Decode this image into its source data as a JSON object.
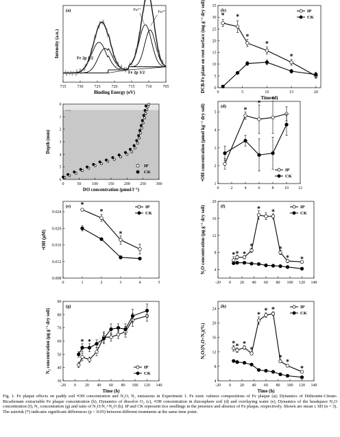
{
  "caption": "Fig. 1. Fe plaque effects on paddy soil •OH concentration and N₂O, N₂ emissions in Experiment 1. Fe ionic valence compositions of Fe plaque (a); Dynamics of Dithionite-Citrate-Bicarbonate extractable Fe plaque concentration (b), Dynamics of dissolve O₂ (c), •OH concentration in rhizosphere soil (d) and overlaying water (e), Dynamics of the headspace N₂O concentration (f), N₂ concentration (g) and ratio of N₂O/N₂+N₂O (h). IP and CK represent rice seedlings in the presence and absence of Fe plaque, respectively. Shown are mean ± SD (n = 3). The asterisk (*) indicates significant differences (p < 0.05) between different treatments at the same time point.",
  "colors": {
    "ip_fill": "#ffffff",
    "ck_fill": "#000000",
    "panel_c_bg": "#c8c8c8",
    "xps_raw": "#a8a8a8"
  },
  "chart_data": [
    {
      "panel": "(a)",
      "type": "line",
      "xlabel": "Binding Energy (eV)",
      "ylabel": "Intensity (a.u.)",
      "xlim": [
        735,
        705
      ],
      "xticks": [
        735,
        730,
        725,
        720,
        715,
        710,
        705
      ],
      "annotations": [
        "Fe²⁺",
        "Fe³⁺",
        "Fe 2p 1/2",
        "Fe 2p 3/2"
      ],
      "peaks": [
        {
          "center": 724.5,
          "height": 0.4,
          "width": 2.2
        },
        {
          "center": 722.8,
          "height": 0.32,
          "width": 2.0
        },
        {
          "center": 711.0,
          "height": 0.55,
          "width": 1.8
        },
        {
          "center": 709.6,
          "height": 0.48,
          "width": 1.6
        }
      ]
    },
    {
      "panel": "(b)",
      "type": "line",
      "xlabel": "Time (d)",
      "ylabel": "DCB-Fe plane on root surface (mg g⁻¹ dry soil)",
      "xlim": [
        0,
        21
      ],
      "ylim": [
        0,
        35
      ],
      "xticks": [
        0,
        5,
        10,
        15,
        20
      ],
      "yticks": [
        0,
        5,
        10,
        15,
        20,
        25,
        30,
        35
      ],
      "legend": [
        "IP",
        "CK"
      ],
      "series": [
        {
          "name": "IP",
          "x": [
            1,
            4,
            6,
            10,
            15,
            20
          ],
          "y": [
            27.5,
            26.0,
            19.0,
            15.8,
            10.8,
            5.0
          ],
          "err": [
            1.5,
            2.5,
            1.5,
            1.5,
            1.2,
            1.0
          ]
        },
        {
          "name": "CK",
          "x": [
            1,
            4,
            6,
            10,
            15,
            20
          ],
          "y": [
            0.5,
            6.3,
            10.3,
            10.8,
            7.0,
            5.6
          ],
          "err": [
            0.3,
            0.5,
            0.8,
            1.0,
            0.8,
            1.0
          ]
        }
      ],
      "stars": [
        {
          "x": 1,
          "y": 31
        },
        {
          "x": 4,
          "y": 30.5
        },
        {
          "x": 6,
          "y": 22
        },
        {
          "x": 10,
          "y": 19
        },
        {
          "x": 15,
          "y": 13.5
        }
      ]
    },
    {
      "panel": "(c)",
      "type": "scatter",
      "xlabel": "DO concentration (μmol l⁻¹)",
      "ylabel": "Depth (mm)",
      "xlim": [
        0,
        300
      ],
      "ylim": [
        0,
        6
      ],
      "xticks": [
        0,
        50,
        100,
        150,
        200,
        250,
        300
      ],
      "yticks": [
        0,
        1,
        2,
        3,
        4,
        5,
        6
      ],
      "tick_labels_y": [
        "0",
        "1",
        "2",
        "3",
        "4",
        "5",
        "6"
      ],
      "legend": [
        "IP",
        "CK"
      ],
      "series": [
        {
          "name": "IP",
          "x": [
            5,
            20,
            40,
            60,
            80,
            100,
            120,
            140,
            160,
            180,
            200,
            215,
            225,
            233,
            238,
            242,
            246,
            250,
            255,
            258,
            262,
            265,
            268
          ],
          "y": [
            5.85,
            5.7,
            5.5,
            5.3,
            5.1,
            4.9,
            4.75,
            4.55,
            4.4,
            4.2,
            4.0,
            3.8,
            3.5,
            3.1,
            2.7,
            2.3,
            1.9,
            1.5,
            1.1,
            0.75,
            0.45,
            0.2,
            0.02
          ]
        },
        {
          "name": "CK",
          "x": [
            0,
            15,
            35,
            55,
            75,
            95,
            115,
            135,
            155,
            175,
            195,
            210,
            222,
            230,
            236,
            240,
            244,
            248,
            252,
            256,
            259
          ],
          "y": [
            5.8,
            5.6,
            5.4,
            5.2,
            5.0,
            4.8,
            4.6,
            4.45,
            4.25,
            4.05,
            3.85,
            3.6,
            3.3,
            2.9,
            2.5,
            2.1,
            1.7,
            1.3,
            0.9,
            0.5,
            0.15
          ]
        }
      ]
    },
    {
      "panel": "(d)",
      "type": "line",
      "xlabel": "",
      "ylabel": "•OH concentration (μmol kg⁻¹ dry soil)",
      "xlim": [
        0,
        12
      ],
      "ylim": [
        1,
        5.6
      ],
      "xticks": [
        0,
        2,
        4,
        6,
        8,
        10,
        12
      ],
      "yticks": [
        1,
        2,
        3,
        4,
        5
      ],
      "legend": [
        "IP",
        "CK"
      ],
      "series": [
        {
          "name": "IP",
          "x": [
            1,
            4,
            6,
            8,
            10
          ],
          "y": [
            2.1,
            4.8,
            4.6,
            4.7,
            4.9
          ],
          "err": [
            0.3,
            0.2,
            0.8,
            0.9,
            0.4
          ]
        },
        {
          "name": "CK",
          "x": [
            1,
            4,
            6,
            8,
            10
          ],
          "y": [
            2.7,
            3.4,
            2.6,
            2.7,
            4.3
          ],
          "err": [
            0.4,
            0.3,
            0.9,
            0.9,
            0.6
          ]
        }
      ],
      "stars": [
        {
          "x": 4,
          "y": 5.15
        },
        {
          "x": 6,
          "y": 5.55
        },
        {
          "x": 8,
          "y": 5.75
        }
      ]
    },
    {
      "panel": "(e)",
      "type": "line",
      "xlabel": "",
      "ylabel": "•OH (μM)",
      "xlim": [
        0,
        5
      ],
      "ylim": [
        0.008,
        0.0265
      ],
      "xticks": [
        0,
        1,
        2,
        3,
        4,
        5
      ],
      "yticks": [
        0.008,
        0.012,
        0.016,
        0.02,
        0.024
      ],
      "tick_labels_y": [
        "0.008",
        "0.012",
        "0.016",
        "0.020",
        "0.024"
      ],
      "legend": [
        "IP",
        "CK"
      ],
      "series": [
        {
          "name": "IP",
          "x": [
            1,
            2,
            3,
            4
          ],
          "y": [
            0.0245,
            0.0225,
            0.0172,
            0.015
          ],
          "err": [
            0.0003,
            0.0008,
            0.001,
            0.0012
          ]
        },
        {
          "name": "CK",
          "x": [
            1,
            2,
            3,
            4
          ],
          "y": [
            0.02,
            0.0174,
            0.013,
            0.0127
          ],
          "err": [
            0.0006,
            0.0003,
            0.0004,
            0.0003
          ]
        }
      ],
      "stars": [
        {
          "x": 1,
          "y": 0.0258
        },
        {
          "x": 2,
          "y": 0.0242
        },
        {
          "x": 3,
          "y": 0.0188
        }
      ]
    },
    {
      "panel": "(f)",
      "type": "line",
      "xlabel": "",
      "ylabel": "N₂O concentration (μg g⁻¹ dry soil)",
      "xlim": [
        -20,
        140
      ],
      "ylim": [
        2,
        20
      ],
      "xticks": [
        -20,
        0,
        20,
        40,
        60,
        80,
        100,
        120,
        140
      ],
      "yticks": [
        4,
        8,
        12,
        16,
        20
      ],
      "legend": [
        "IP",
        "CK"
      ],
      "series": [
        {
          "name": "IP",
          "x": [
            6,
            12,
            24,
            36,
            48,
            60,
            72,
            84,
            96,
            120
          ],
          "y": [
            6.2,
            6.9,
            6.9,
            8.5,
            16.8,
            16.5,
            16.5,
            8.0,
            6.0,
            5.8
          ],
          "err": [
            0.8,
            0.5,
            0.4,
            0.5,
            1.0,
            0.8,
            0.6,
            0.5,
            0.4,
            0.3
          ]
        },
        {
          "name": "CK",
          "x": [
            6,
            12,
            24,
            36,
            48,
            60,
            72,
            84,
            96,
            120
          ],
          "y": [
            5.5,
            5.6,
            5.6,
            5.4,
            5.3,
            5.0,
            4.9,
            4.8,
            4.6,
            4.2
          ],
          "err": [
            0.3,
            0.3,
            0.2,
            0.2,
            0.2,
            0.2,
            0.2,
            0.2,
            0.2,
            0.2
          ]
        }
      ],
      "stars": [
        {
          "x": 6,
          "y": 7.6
        },
        {
          "x": 12,
          "y": 7.9
        },
        {
          "x": 24,
          "y": 7.8
        },
        {
          "x": 36,
          "y": 9.6
        },
        {
          "x": 48,
          "y": 18.4
        },
        {
          "x": 72,
          "y": 17.7
        },
        {
          "x": 84,
          "y": 9.0
        },
        {
          "x": 96,
          "y": 6.9
        },
        {
          "x": 120,
          "y": 6.6
        }
      ]
    },
    {
      "panel": "(g)",
      "type": "line",
      "xlabel": "Time (h)",
      "ylabel": "N₂ concentration (μg g⁻¹ dry soil)",
      "xlim": [
        -20,
        140
      ],
      "ylim": [
        30,
        90
      ],
      "xticks": [
        -20,
        0,
        20,
        40,
        60,
        80,
        100,
        120,
        140
      ],
      "yticks": [
        30,
        40,
        50,
        60,
        70,
        80,
        90
      ],
      "legend": [
        "IP",
        "CK"
      ],
      "series": [
        {
          "name": "IP",
          "x": [
            6,
            12,
            24,
            36,
            48,
            60,
            72,
            84,
            96,
            120
          ],
          "y": [
            42,
            48,
            46,
            52,
            63,
            63,
            65,
            67,
            76,
            79
          ],
          "err": [
            2,
            3,
            2,
            3,
            4,
            3,
            3,
            4,
            5,
            4
          ]
        },
        {
          "name": "CK",
          "x": [
            6,
            12,
            24,
            36,
            48,
            60,
            72,
            84,
            96,
            120
          ],
          "y": [
            50,
            55,
            55,
            58,
            62,
            69,
            70,
            69,
            79,
            83
          ],
          "err": [
            2,
            3,
            3,
            3,
            4,
            4,
            3,
            4,
            5,
            5
          ]
        }
      ],
      "stars": [
        {
          "x": 12,
          "y": 60
        },
        {
          "x": 24,
          "y": 60
        }
      ]
    },
    {
      "panel": "(h)",
      "type": "line",
      "xlabel": "Time (h)",
      "ylabel": "N₂O/(N₂O+N₂)(%)",
      "xlim": [
        -20,
        140
      ],
      "ylim": [
        4,
        26
      ],
      "xticks": [
        -20,
        0,
        20,
        40,
        60,
        80,
        100,
        120,
        140
      ],
      "yticks": [
        4,
        8,
        12,
        16,
        20,
        24
      ],
      "legend": [
        "IP",
        "CK"
      ],
      "series": [
        {
          "name": "IP",
          "x": [
            6,
            12,
            24,
            36,
            48,
            60,
            72,
            84,
            96,
            120
          ],
          "y": [
            13.0,
            12.5,
            13.2,
            11.6,
            20.7,
            22.2,
            22.6,
            9.4,
            8.2,
            6.5
          ],
          "err": [
            0.8,
            0.6,
            0.5,
            0.4,
            1.0,
            0.6,
            0.5,
            0.4,
            0.4,
            0.3
          ]
        },
        {
          "name": "CK",
          "x": [
            6,
            12,
            24,
            36,
            48,
            60,
            72,
            84,
            96,
            120
          ],
          "y": [
            9.5,
            9.2,
            9.0,
            8.5,
            7.0,
            6.8,
            6.5,
            5.8,
            5.4,
            5.0
          ],
          "err": [
            0.3,
            0.3,
            0.3,
            0.3,
            0.2,
            0.2,
            0.2,
            0.2,
            0.2,
            0.2
          ]
        }
      ],
      "stars": [
        {
          "x": 6,
          "y": 14.5
        },
        {
          "x": 12,
          "y": 13.8
        },
        {
          "x": 24,
          "y": 14.4
        },
        {
          "x": 36,
          "y": 12.8
        },
        {
          "x": 48,
          "y": 22.5
        },
        {
          "x": 60,
          "y": 23.6
        },
        {
          "x": 72,
          "y": 23.9
        },
        {
          "x": 84,
          "y": 10.6
        },
        {
          "x": 96,
          "y": 9.4
        },
        {
          "x": 120,
          "y": 7.6
        }
      ]
    }
  ]
}
